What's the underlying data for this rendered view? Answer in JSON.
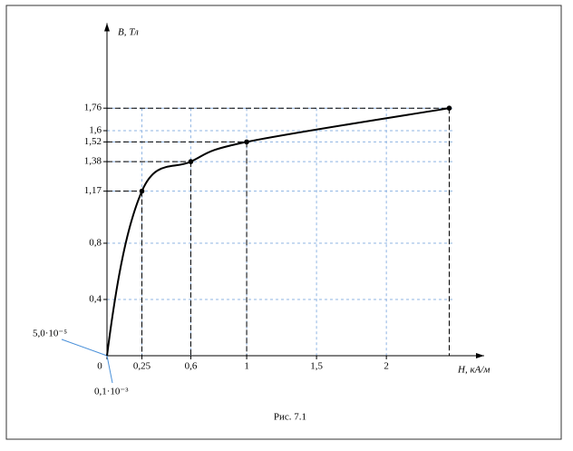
{
  "chart_data": {
    "type": "line",
    "title": "Рис. 7.1",
    "x_label": "H, кА/м",
    "y_label": "B, Тл",
    "x": [
      0.0001,
      0.25,
      0.6,
      1,
      2.45
    ],
    "series": [
      {
        "color": "#000000",
        "values": [
          5e-05,
          1.17,
          1.38,
          1.52,
          1.76
        ]
      }
    ],
    "xlim": [
      0,
      2.7
    ],
    "ylim": [
      0,
      2.3
    ],
    "xticks": [
      {
        "value": 0,
        "label": "0"
      },
      {
        "value": 0.25,
        "label": "0,25"
      },
      {
        "value": 0.6,
        "label": "0,6"
      },
      1,
      {
        "value": 1.5,
        "label": "1,5"
      },
      2
    ],
    "yticks": [
      {
        "value": 0.4,
        "label": "0,4"
      },
      {
        "value": 0.8,
        "label": "0,8"
      },
      {
        "value": 1.17,
        "label": "1,17"
      },
      {
        "value": 1.38,
        "label": "1,38"
      },
      {
        "value": 1.52,
        "label": "1,52"
      },
      {
        "value": 1.6,
        "label": "1,6"
      },
      {
        "value": 1.76,
        "label": "1,76"
      }
    ],
    "grid": true,
    "grid_color": "#8fb4e3",
    "annotations": [
      "5,0·10⁻⁵",
      "0,1·10⁻³"
    ]
  }
}
